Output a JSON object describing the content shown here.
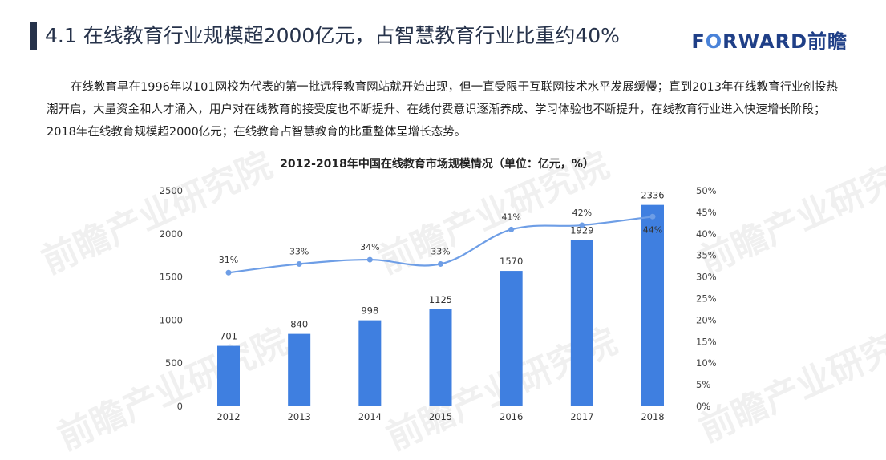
{
  "header": {
    "title": "4.1 在线教育行业规模超2000亿元，占智慧教育行业比重约40%",
    "logo_prefix": "F",
    "logo_o": "O",
    "logo_rest": "RWARD前瞻"
  },
  "body": {
    "paragraph": "在线教育早在1996年以101网校为代表的第一批远程教育网站就开始出现，但一直受限于互联网技术水平发展缓慢；直到2013年在线教育行业创投热潮开启，大量资金和人才涌入，用户对在线教育的接受度也不断提升、在线付费意识逐渐养成、学习体验也不断提升，在线教育行业进入快速增长阶段；2018年在线教育规模超2000亿元；在线教育占智慧教育的比重整体呈增长态势。"
  },
  "watermark": {
    "text": "前瞻产业研究院"
  },
  "colors": {
    "bar": "#3f7fe0",
    "line": "#6e9ee6",
    "title": "#26324a",
    "logo": "#1f3f87"
  },
  "chart_data": {
    "type": "bar",
    "title": "2012-2018年中国在线教育市场规模情况（单位：亿元，%）",
    "categories": [
      "2012",
      "2013",
      "2014",
      "2015",
      "2016",
      "2017",
      "2018"
    ],
    "series": [
      {
        "type": "bar",
        "values": [
          701,
          840,
          998,
          1125,
          1570,
          1929,
          2336
        ],
        "axis": "left"
      },
      {
        "type": "line",
        "values": [
          31,
          33,
          34,
          33,
          41,
          42,
          44
        ],
        "axis": "right",
        "labels": [
          "31%",
          "33%",
          "34%",
          "33%",
          "41%",
          "42%",
          "44%"
        ]
      }
    ],
    "y_left": {
      "min": 0,
      "max": 2500,
      "ticks": [
        "0",
        "500",
        "1000",
        "1500",
        "2000",
        "2500"
      ]
    },
    "y_right": {
      "min": 0,
      "max": 50,
      "ticks": [
        "0%",
        "5%",
        "10%",
        "15%",
        "20%",
        "25%",
        "30%",
        "35%",
        "40%",
        "45%",
        "50%"
      ]
    },
    "grid": false,
    "legend": "none"
  }
}
